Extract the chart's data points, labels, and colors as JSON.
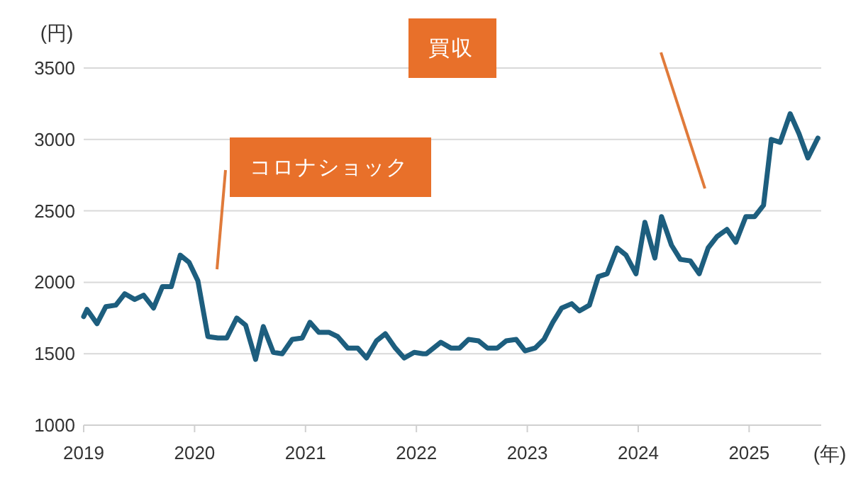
{
  "chart_data": {
    "type": "line",
    "xlabel": "(年)",
    "ylabel": "(円)",
    "xlim": [
      2019,
      2025.65
    ],
    "xticks": [
      2019,
      2020,
      2021,
      2022,
      2023,
      2024,
      2025
    ],
    "ylim": [
      1000,
      3500
    ],
    "yticks": [
      1000,
      1500,
      2000,
      2500,
      3000,
      3500
    ],
    "grid": "y",
    "marker": "none",
    "line_style": "solid",
    "series": [
      {
        "color": "#1d5e7e",
        "x": [
          2019.0,
          2019.03,
          2019.12,
          2019.2,
          2019.29,
          2019.37,
          2019.46,
          2019.54,
          2019.63,
          2019.71,
          2019.79,
          2019.87,
          2019.95,
          2020.03,
          2020.12,
          2020.21,
          2020.29,
          2020.38,
          2020.46,
          2020.55,
          2020.62,
          2020.71,
          2020.79,
          2020.88,
          2020.97,
          2021.04,
          2021.12,
          2021.21,
          2021.29,
          2021.38,
          2021.47,
          2021.55,
          2021.64,
          2021.72,
          2021.81,
          2021.89,
          2021.98,
          2022.06,
          2022.09,
          2022.22,
          2022.31,
          2022.39,
          2022.47,
          2022.56,
          2022.64,
          2022.73,
          2022.81,
          2022.9,
          2022.98,
          2023.07,
          2023.15,
          2023.23,
          2023.31,
          2023.4,
          2023.47,
          2023.56,
          2023.64,
          2023.72,
          2023.81,
          2023.89,
          2023.98,
          2024.06,
          2024.15,
          2024.21,
          2024.3,
          2024.38,
          2024.47,
          2024.55,
          2024.63,
          2024.71,
          2024.8,
          2024.88,
          2024.97,
          2025.05,
          2025.13,
          2025.2,
          2025.28,
          2025.37,
          2025.45,
          2025.53,
          2025.62
        ],
        "values": [
          1760,
          1810,
          1710,
          1830,
          1840,
          1920,
          1880,
          1910,
          1820,
          1970,
          1970,
          2190,
          2140,
          2010,
          1620,
          1610,
          1610,
          1750,
          1700,
          1460,
          1690,
          1510,
          1500,
          1600,
          1610,
          1720,
          1650,
          1650,
          1620,
          1540,
          1540,
          1470,
          1590,
          1640,
          1540,
          1470,
          1510,
          1500,
          1500,
          1580,
          1540,
          1540,
          1600,
          1590,
          1540,
          1540,
          1590,
          1600,
          1520,
          1540,
          1600,
          1720,
          1820,
          1850,
          1800,
          1840,
          2040,
          2060,
          2240,
          2190,
          2060,
          2420,
          2170,
          2460,
          2260,
          2160,
          2150,
          2060,
          2240,
          2320,
          2370,
          2280,
          2460,
          2460,
          2540,
          3000,
          2980,
          3180,
          3040,
          2870,
          3010
        ]
      }
    ],
    "annotations": [
      "コロナショック",
      "買収"
    ]
  }
}
